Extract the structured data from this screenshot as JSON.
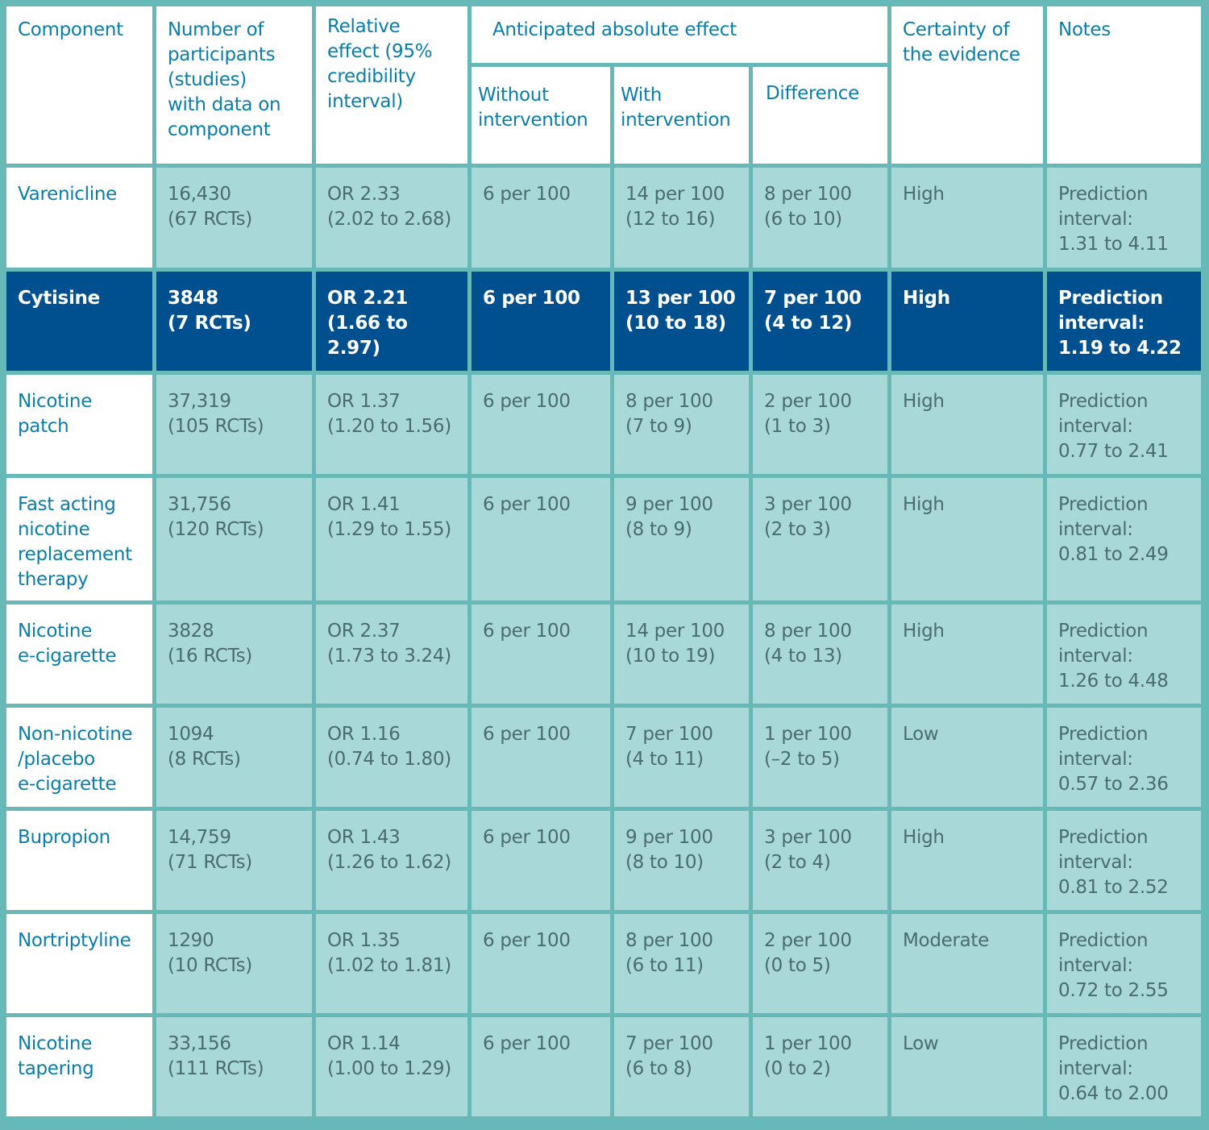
{
  "table": {
    "headers": {
      "component": "Component",
      "participants": [
        "Number of",
        "participants",
        "(studies)",
        "with data on",
        "component"
      ],
      "relative_effect": [
        "Relative",
        "effect (95%",
        "credibility",
        "interval)"
      ],
      "absolute_effect_group": "Anticipated absolute effect",
      "without_intervention": [
        "Without",
        "intervention"
      ],
      "with_intervention": [
        "With",
        "intervention"
      ],
      "difference": "Difference",
      "certainty": [
        "Certainty of",
        "the evidence"
      ],
      "notes": "Notes"
    },
    "rows": [
      {
        "component": [
          "Varenicline"
        ],
        "participants": [
          "16,430",
          "(67 RCTs)"
        ],
        "relative": [
          "OR 2.33",
          "(2.02 to 2.68)"
        ],
        "without": "6 per 100",
        "with": [
          "14 per 100",
          "(12 to 16)"
        ],
        "difference": [
          "8 per 100",
          "(6 to 10)"
        ],
        "certainty": "High",
        "notes": [
          "Prediction",
          "interval:",
          "1.31 to 4.11"
        ],
        "highlighted": false
      },
      {
        "component": [
          "Cytisine"
        ],
        "participants": [
          "3848",
          "(7 RCTs)"
        ],
        "relative": [
          "OR 2.21",
          "(1.66 to 2.97)"
        ],
        "without": "6 per 100",
        "with": [
          "13 per 100",
          "(10 to 18)"
        ],
        "difference": [
          "7 per 100",
          "(4 to 12)"
        ],
        "certainty": "High",
        "notes": [
          "Prediction",
          "interval:",
          "1.19 to 4.22"
        ],
        "highlighted": true
      },
      {
        "component": [
          "Nicotine",
          "patch"
        ],
        "participants": [
          "37,319",
          "(105 RCTs)"
        ],
        "relative": [
          "OR 1.37",
          "(1.20 to 1.56)"
        ],
        "without": "6 per 100",
        "with": [
          "8 per 100",
          "(7 to 9)"
        ],
        "difference": [
          "2 per 100",
          "(1 to 3)"
        ],
        "certainty": "High",
        "notes": [
          "Prediction",
          "interval:",
          "0.77 to 2.41"
        ],
        "highlighted": false
      },
      {
        "component": [
          "Fast acting",
          "nicotine",
          "replacement",
          "therapy"
        ],
        "participants": [
          "31,756",
          "(120 RCTs)"
        ],
        "relative": [
          "OR 1.41",
          "(1.29 to 1.55)"
        ],
        "without": "6 per 100",
        "with": [
          "9 per 100",
          "(8 to 9)"
        ],
        "difference": [
          "3 per 100",
          "(2 to 3)"
        ],
        "certainty": "High",
        "notes": [
          "Prediction",
          "interval:",
          "0.81 to 2.49"
        ],
        "highlighted": false
      },
      {
        "component": [
          "Nicotine",
          "e-cigarette"
        ],
        "participants": [
          "3828",
          "(16 RCTs)"
        ],
        "relative": [
          "OR 2.37",
          "(1.73 to 3.24)"
        ],
        "without": "6 per 100",
        "with": [
          "14 per 100",
          "(10 to 19)"
        ],
        "difference": [
          "8 per 100",
          "(4 to 13)"
        ],
        "certainty": "High",
        "notes": [
          "Prediction",
          "interval:",
          "1.26 to 4.48"
        ],
        "highlighted": false
      },
      {
        "component": [
          "Non-nicotine",
          "/placebo",
          "e-cigarette"
        ],
        "participants": [
          "1094",
          "(8 RCTs)"
        ],
        "relative": [
          "OR 1.16",
          "(0.74 to 1.80)"
        ],
        "without": "6 per 100",
        "with": [
          "7 per 100",
          "(4 to 11)"
        ],
        "difference": [
          "1 per 100",
          "(–2 to 5)"
        ],
        "certainty": "Low",
        "notes": [
          "Prediction",
          "interval:",
          "0.57 to 2.36"
        ],
        "highlighted": false
      },
      {
        "component": [
          "Bupropion"
        ],
        "participants": [
          "14,759",
          "(71 RCTs)"
        ],
        "relative": [
          "OR 1.43",
          "(1.26 to 1.62)"
        ],
        "without": "6 per 100",
        "with": [
          "9 per 100",
          "(8 to 10)"
        ],
        "difference": [
          "3 per 100",
          "(2 to 4)"
        ],
        "certainty": "High",
        "notes": [
          "Prediction",
          "interval:",
          "0.81 to 2.52"
        ],
        "highlighted": false
      },
      {
        "component": [
          "Nortriptyline"
        ],
        "participants": [
          "1290",
          "(10 RCTs)"
        ],
        "relative": [
          "OR 1.35",
          "(1.02 to 1.81)"
        ],
        "without": "6 per 100",
        "with": [
          "8 per 100",
          "(6 to 11)"
        ],
        "difference": [
          "2 per 100",
          "(0 to 5)"
        ],
        "certainty": "Moderate",
        "notes": [
          "Prediction",
          "interval:",
          "0.72 to 2.55"
        ],
        "highlighted": false
      },
      {
        "component": [
          "Nicotine",
          "tapering"
        ],
        "participants": [
          "33,156",
          "(111 RCTs)"
        ],
        "relative": [
          "OR 1.14",
          "(1.00 to 1.29)"
        ],
        "without": "6 per 100",
        "with": [
          "7 per 100",
          "(6 to 8)"
        ],
        "difference": [
          "1 per 100",
          "(0 to 2)"
        ],
        "certainty": "Low",
        "notes": [
          "Prediction",
          "interval:",
          "0.64 to 2.00"
        ],
        "highlighted": false
      }
    ]
  },
  "colors": {
    "border": "#66b9b6",
    "header_bg": "#ffffff",
    "header_text": "#0a7ea8",
    "data_bg": "#a8d9d8",
    "data_text": "#4a6b70",
    "highlight_bg": "#00508f",
    "highlight_text": "#ffffff"
  }
}
